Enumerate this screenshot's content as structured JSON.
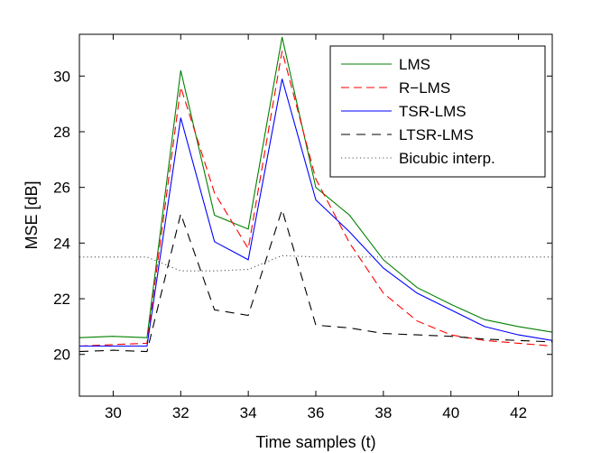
{
  "chart_data": {
    "type": "line",
    "xlabel": "Time samples (t)",
    "ylabel": "MSE [dB]",
    "xlim": [
      29,
      43
    ],
    "ylim": [
      18.5,
      31.5
    ],
    "xticks": [
      30,
      32,
      34,
      36,
      38,
      40,
      42
    ],
    "yticks": [
      20,
      22,
      24,
      26,
      28,
      30
    ],
    "grid": false,
    "legend_position": "top-right",
    "x": [
      29,
      30,
      31,
      32,
      33,
      34,
      35,
      36,
      37,
      38,
      39,
      40,
      41,
      42,
      43
    ],
    "series": [
      {
        "name": "LMS",
        "color": "#008000",
        "style": "solid",
        "values": [
          20.6,
          20.65,
          20.6,
          30.2,
          25.0,
          24.5,
          31.4,
          26.0,
          25.0,
          23.4,
          22.4,
          21.8,
          21.25,
          21.0,
          20.8
        ]
      },
      {
        "name": "R−LMS",
        "color": "#ff0000",
        "style": "dashed",
        "values": [
          20.3,
          20.35,
          20.4,
          29.6,
          25.8,
          23.8,
          30.9,
          26.3,
          24.0,
          22.2,
          21.2,
          20.7,
          20.5,
          20.4,
          20.3
        ]
      },
      {
        "name": "TSR-LMS",
        "color": "#0000ff",
        "style": "solid",
        "values": [
          20.3,
          20.3,
          20.3,
          28.5,
          24.05,
          23.4,
          29.9,
          25.55,
          24.4,
          23.1,
          22.2,
          21.6,
          21.0,
          20.7,
          20.5
        ]
      },
      {
        "name": "LTSR-LMS",
        "color": "#000000",
        "style": "longdash",
        "values": [
          20.1,
          20.15,
          20.1,
          25.05,
          21.6,
          21.4,
          25.2,
          21.05,
          20.95,
          20.75,
          20.7,
          20.65,
          20.55,
          20.5,
          20.45
        ]
      },
      {
        "name": "Bicubic interp.",
        "color": "#555555",
        "style": "dotted",
        "values": [
          23.5,
          23.5,
          23.5,
          23.0,
          23.0,
          23.05,
          23.55,
          23.5,
          23.5,
          23.5,
          23.5,
          23.5,
          23.5,
          23.5,
          23.5
        ]
      }
    ]
  }
}
